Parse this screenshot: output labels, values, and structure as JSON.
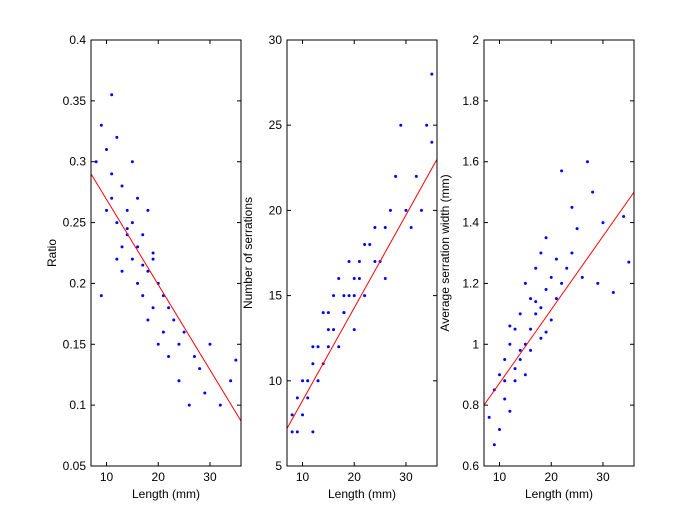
{
  "chart_data": [
    {
      "type": "scatter",
      "xlabel": "Length (mm)",
      "ylabel": "Ratio",
      "color": "#0000ff",
      "x": [
        8,
        9,
        9,
        10,
        10,
        11,
        11,
        12,
        12,
        13,
        13,
        13,
        14,
        14,
        15,
        15,
        15,
        16,
        16,
        16,
        17,
        17,
        18,
        18,
        18,
        19,
        19,
        20,
        20,
        21,
        21,
        22,
        22,
        23,
        24,
        24,
        25,
        26,
        27,
        28,
        29,
        30,
        32,
        34,
        35,
        11,
        12,
        14,
        17,
        19
      ],
      "values": [
        0.3,
        0.33,
        0.19,
        0.31,
        0.26,
        0.355,
        0.27,
        0.32,
        0.25,
        0.28,
        0.23,
        0.21,
        0.26,
        0.24,
        0.3,
        0.22,
        0.25,
        0.27,
        0.2,
        0.23,
        0.24,
        0.19,
        0.21,
        0.17,
        0.26,
        0.22,
        0.18,
        0.2,
        0.15,
        0.19,
        0.16,
        0.18,
        0.14,
        0.17,
        0.15,
        0.12,
        0.16,
        0.1,
        0.14,
        0.13,
        0.11,
        0.15,
        0.1,
        0.12,
        0.137,
        0.29,
        0.22,
        0.245,
        0.215,
        0.225
      ],
      "fit": {
        "x": [
          7,
          36
        ],
        "values": [
          0.29,
          0.087
        ],
        "color": "#ff0000"
      },
      "xlim": [
        7,
        36
      ],
      "ylim": [
        0.05,
        0.4
      ],
      "xticks": [
        10,
        20,
        30
      ],
      "yticks": [
        0.05,
        0.1,
        0.15,
        0.2,
        0.25,
        0.3,
        0.35,
        0.4
      ]
    },
    {
      "type": "scatter",
      "xlabel": "Length (mm)",
      "ylabel": "Number of serrations",
      "color": "#0000ff",
      "x": [
        8,
        8,
        9,
        9,
        10,
        10,
        11,
        11,
        12,
        12,
        13,
        13,
        14,
        14,
        15,
        15,
        16,
        16,
        17,
        17,
        18,
        18,
        19,
        19,
        20,
        20,
        21,
        21,
        22,
        22,
        23,
        24,
        25,
        26,
        27,
        28,
        29,
        30,
        32,
        34,
        35,
        35,
        12,
        15,
        18,
        20,
        24,
        26,
        31,
        33
      ],
      "values": [
        7,
        8,
        7,
        9,
        8,
        10,
        9,
        10,
        11,
        7,
        10,
        12,
        11,
        14,
        12,
        14,
        13,
        15,
        12,
        16,
        14,
        15,
        15,
        17,
        13,
        16,
        17,
        16,
        18,
        15,
        18,
        19,
        17,
        19,
        20,
        22,
        25,
        20,
        22,
        25,
        28,
        24,
        12,
        13,
        14,
        15,
        17,
        16,
        19,
        20
      ],
      "fit": {
        "x": [
          7,
          36
        ],
        "values": [
          7.2,
          23
        ],
        "color": "#ff0000"
      },
      "xlim": [
        7,
        36
      ],
      "ylim": [
        5,
        30
      ],
      "xticks": [
        10,
        20,
        30
      ],
      "yticks": [
        5,
        10,
        15,
        20,
        25,
        30
      ]
    },
    {
      "type": "scatter",
      "xlabel": "Length (mm)",
      "ylabel": "Average serration width (mm)",
      "color": "#0000ff",
      "x": [
        8,
        9,
        9,
        10,
        10,
        11,
        11,
        12,
        12,
        13,
        13,
        13,
        14,
        14,
        15,
        15,
        15,
        16,
        16,
        16,
        17,
        17,
        18,
        18,
        18,
        19,
        19,
        20,
        20,
        21,
        21,
        22,
        22,
        23,
        24,
        24,
        25,
        26,
        27,
        28,
        29,
        30,
        32,
        34,
        35,
        11,
        12,
        14,
        17,
        19
      ],
      "values": [
        0.76,
        0.67,
        0.85,
        0.9,
        0.72,
        0.95,
        0.82,
        1.0,
        0.78,
        0.92,
        1.05,
        0.88,
        1.1,
        0.95,
        1.0,
        1.2,
        0.9,
        1.05,
        1.15,
        0.98,
        1.1,
        1.25,
        1.02,
        1.3,
        1.12,
        1.18,
        1.35,
        1.08,
        1.22,
        1.28,
        1.15,
        1.57,
        1.2,
        1.25,
        1.45,
        1.3,
        1.38,
        1.22,
        1.6,
        1.5,
        1.2,
        1.4,
        1.17,
        1.42,
        1.27,
        0.88,
        1.06,
        0.98,
        1.14,
        1.04
      ],
      "fit": {
        "x": [
          7,
          36
        ],
        "values": [
          0.8,
          1.5
        ],
        "color": "#ff0000"
      },
      "xlim": [
        7,
        36
      ],
      "ylim": [
        0.6,
        2
      ],
      "xticks": [
        10,
        20,
        30
      ],
      "yticks": [
        0.6,
        0.8,
        1,
        1.2,
        1.4,
        1.6,
        1.8,
        2
      ]
    }
  ]
}
